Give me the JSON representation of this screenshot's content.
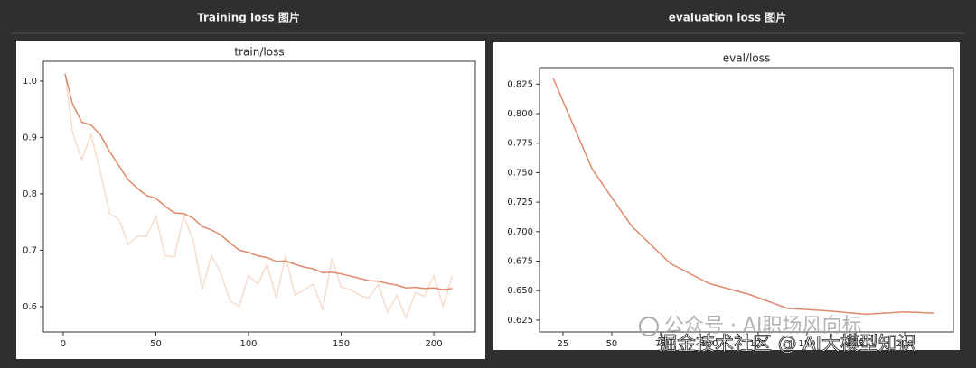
{
  "headers": [
    "Training loss 图片",
    "evaluation loss 图片"
  ],
  "chart_data": [
    {
      "type": "line",
      "title": "train/loss",
      "x": [
        1,
        5,
        10,
        15,
        20,
        25,
        30,
        35,
        40,
        45,
        50,
        55,
        60,
        65,
        70,
        75,
        80,
        85,
        90,
        95,
        100,
        105,
        110,
        115,
        120,
        125,
        130,
        135,
        140,
        145,
        150,
        155,
        160,
        165,
        170,
        175,
        180,
        185,
        190,
        195,
        200,
        205,
        210
      ],
      "series": [
        {
          "color": "#f6dccf",
          "values": [
            1.013,
            0.91,
            0.86,
            0.905,
            0.84,
            0.765,
            0.755,
            0.71,
            0.725,
            0.725,
            0.76,
            0.69,
            0.688,
            0.76,
            0.72,
            0.63,
            0.69,
            0.66,
            0.61,
            0.6,
            0.655,
            0.64,
            0.675,
            0.615,
            0.69,
            0.62,
            0.63,
            0.64,
            0.595,
            0.685,
            0.635,
            0.63,
            0.62,
            0.615,
            0.64,
            0.59,
            0.62,
            0.58,
            0.625,
            0.618,
            0.655,
            0.6,
            0.655
          ]
        },
        {
          "color": "#e0896a",
          "values": [
            1.013,
            0.96,
            0.927,
            0.922,
            0.905,
            0.875,
            0.85,
            0.825,
            0.81,
            0.797,
            0.792,
            0.778,
            0.766,
            0.765,
            0.757,
            0.742,
            0.736,
            0.727,
            0.713,
            0.7,
            0.696,
            0.69,
            0.687,
            0.68,
            0.681,
            0.675,
            0.67,
            0.667,
            0.66,
            0.661,
            0.658,
            0.654,
            0.65,
            0.646,
            0.645,
            0.641,
            0.638,
            0.633,
            0.634,
            0.632,
            0.633,
            0.63,
            0.632
          ]
        }
      ],
      "xlim": [
        -10.7,
        222.4
      ],
      "xticks": [
        0,
        50,
        100,
        150,
        200
      ],
      "ylim": [
        0.555,
        1.035
      ],
      "yticks": [
        0.6,
        0.7,
        0.8,
        0.9,
        {
          "value": 1.0,
          "label": "1.0"
        }
      ]
    },
    {
      "type": "line",
      "title": "eval/loss",
      "x": [
        20,
        40,
        60,
        80,
        100,
        120,
        140,
        160,
        180,
        200,
        215
      ],
      "series": [
        {
          "color": "#e0896a",
          "values": [
            0.83,
            0.753,
            0.705,
            0.673,
            0.656,
            0.647,
            0.635,
            0.633,
            0.63,
            0.632,
            0.631
          ]
        }
      ],
      "xlim": [
        13,
        225
      ],
      "xticks": [
        25,
        50,
        75,
        100,
        125,
        150,
        175,
        200
      ],
      "ylim": [
        0.615,
        0.839
      ],
      "yticks": [
        0.625,
        {
          "value": 0.65,
          "label": "0.650"
        },
        0.675,
        {
          "value": 0.7,
          "label": "0.700"
        },
        0.725,
        {
          "value": 0.75,
          "label": "0.750"
        },
        0.775,
        {
          "value": 0.8,
          "label": "0.800"
        },
        0.825
      ]
    }
  ],
  "watermarks": [
    "公众号 · AI职场风向标",
    "掘金技术社区 @ AI大模型知识"
  ]
}
